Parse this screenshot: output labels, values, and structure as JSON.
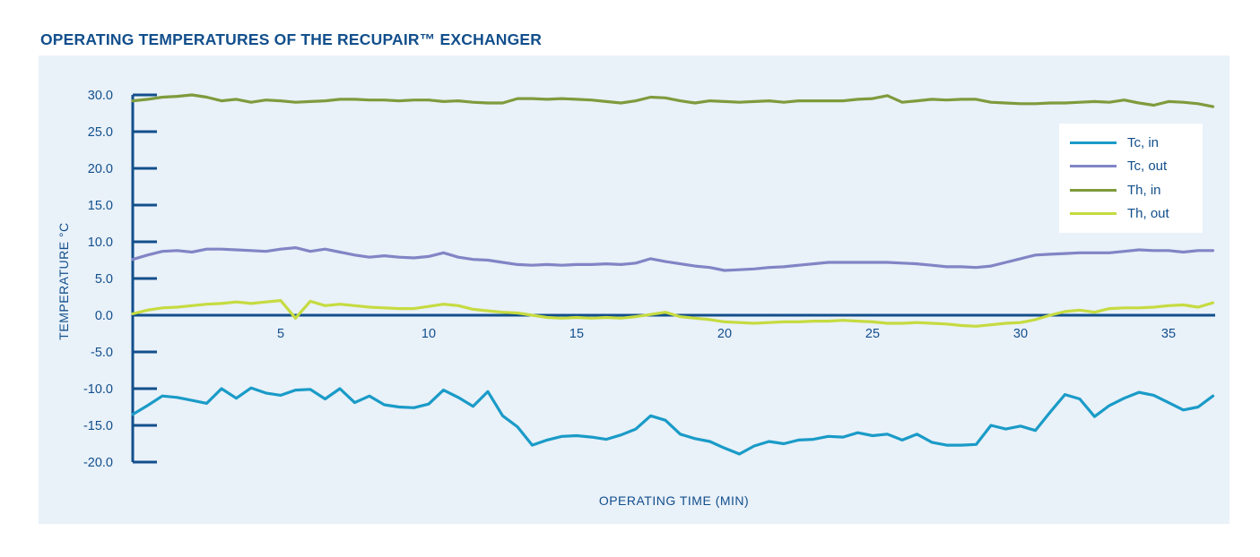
{
  "page": {
    "title": "OPERATING TEMPERATURES OF THE RECUPAIR™ EXCHANGER"
  },
  "colors": {
    "panel_bg": "#E9F1F9",
    "axis_blue": "#124F8C",
    "text_blue": "#124F8C",
    "legend_bg": "#FFFFFF"
  },
  "chart_data": {
    "type": "line",
    "title": "OPERATING TEMPERATURES OF THE RECUPAIR™ EXCHANGER",
    "xlabel": "OPERATING TIME (MIN)",
    "ylabel": "TEMPERATURE °C",
    "xlim": [
      0,
      36.5
    ],
    "ylim": [
      -20,
      30
    ],
    "grid": false,
    "legend_position": "upper right",
    "x_tick_values": [
      5,
      10,
      15,
      20,
      25,
      30,
      35
    ],
    "x_tick_labels": [
      "5",
      "10",
      "15",
      "20",
      "25",
      "30",
      "35"
    ],
    "y_tick_values": [
      30,
      25,
      20,
      15,
      10,
      5,
      0,
      -5,
      -10,
      -15,
      -20
    ],
    "y_tick_labels": [
      "30.0",
      "25.0",
      "20.0",
      "15.0",
      "10.0",
      "5.0",
      "0.0",
      "-5.0",
      "-10.0",
      "-15.0",
      "-20.0"
    ],
    "x_start": 0,
    "x_step": 0.5,
    "series": [
      {
        "key": "tc_in",
        "name": "Tc, in",
        "color": "#1A9BC7",
        "values": [
          -13.5,
          -12.3,
          -11.0,
          -11.2,
          -11.6,
          -12.0,
          -10.0,
          -11.3,
          -9.9,
          -10.6,
          -10.9,
          -10.2,
          -10.1,
          -11.4,
          -10.0,
          -11.9,
          -11.0,
          -12.2,
          -12.5,
          -12.6,
          -12.1,
          -10.2,
          -11.2,
          -12.4,
          -10.4,
          -13.7,
          -15.2,
          -17.7,
          -17.0,
          -16.5,
          -16.4,
          -16.6,
          -16.9,
          -16.3,
          -15.5,
          -13.7,
          -14.3,
          -16.2,
          -16.8,
          -17.2,
          -18.1,
          -18.9,
          -17.8,
          -17.2,
          -17.5,
          -17.0,
          -16.9,
          -16.5,
          -16.6,
          -16.0,
          -16.4,
          -16.2,
          -17.0,
          -16.2,
          -17.3,
          -17.7,
          -17.7,
          -17.6,
          -15.0,
          -15.5,
          -15.1,
          -15.7,
          -13.2,
          -10.8,
          -11.4,
          -13.8,
          -12.3,
          -11.3,
          -10.5,
          -10.9,
          -11.9,
          -12.9,
          -12.5,
          -11.0
        ]
      },
      {
        "key": "tc_out",
        "name": "Tc, out",
        "color": "#8185C5",
        "values": [
          7.6,
          8.2,
          8.7,
          8.8,
          8.6,
          9.0,
          9.0,
          8.9,
          8.8,
          8.7,
          9.0,
          9.2,
          8.7,
          9.0,
          8.6,
          8.2,
          7.9,
          8.1,
          7.9,
          7.8,
          8.0,
          8.5,
          7.9,
          7.6,
          7.5,
          7.2,
          6.9,
          6.8,
          6.9,
          6.8,
          6.9,
          6.9,
          7.0,
          6.9,
          7.1,
          7.7,
          7.3,
          7.0,
          6.7,
          6.5,
          6.1,
          6.2,
          6.3,
          6.5,
          6.6,
          6.8,
          7.0,
          7.2,
          7.2,
          7.2,
          7.2,
          7.2,
          7.1,
          7.0,
          6.8,
          6.6,
          6.6,
          6.5,
          6.7,
          7.2,
          7.7,
          8.2,
          8.3,
          8.4,
          8.5,
          8.5,
          8.5,
          8.7,
          8.9,
          8.8,
          8.8,
          8.6,
          8.8,
          8.8
        ]
      },
      {
        "key": "th_in",
        "name": "Th, in",
        "color": "#7E9B3C",
        "values": [
          29.2,
          29.4,
          29.7,
          29.8,
          30.0,
          29.7,
          29.2,
          29.4,
          29.0,
          29.3,
          29.2,
          29.0,
          29.1,
          29.2,
          29.4,
          29.4,
          29.3,
          29.3,
          29.2,
          29.3,
          29.3,
          29.1,
          29.2,
          29.0,
          28.9,
          28.9,
          29.5,
          29.5,
          29.4,
          29.5,
          29.4,
          29.3,
          29.1,
          28.9,
          29.2,
          29.7,
          29.6,
          29.2,
          28.9,
          29.2,
          29.1,
          29.0,
          29.1,
          29.2,
          29.0,
          29.2,
          29.2,
          29.2,
          29.2,
          29.4,
          29.5,
          29.9,
          29.0,
          29.2,
          29.4,
          29.3,
          29.4,
          29.4,
          29.0,
          28.9,
          28.8,
          28.8,
          28.9,
          28.9,
          29.0,
          29.1,
          29.0,
          29.3,
          28.9,
          28.6,
          29.1,
          29.0,
          28.8,
          28.4
        ]
      },
      {
        "key": "th_out",
        "name": "Th, out",
        "color": "#C6DB40",
        "values": [
          0.2,
          0.7,
          1.0,
          1.1,
          1.3,
          1.5,
          1.6,
          1.8,
          1.6,
          1.8,
          2.0,
          -0.4,
          1.9,
          1.3,
          1.5,
          1.3,
          1.1,
          1.0,
          0.9,
          0.9,
          1.2,
          1.5,
          1.3,
          0.8,
          0.6,
          0.4,
          0.3,
          0.0,
          -0.3,
          -0.4,
          -0.3,
          -0.4,
          -0.3,
          -0.4,
          -0.2,
          0.1,
          0.4,
          -0.2,
          -0.4,
          -0.6,
          -0.9,
          -1.0,
          -1.1,
          -1.0,
          -0.9,
          -0.9,
          -0.8,
          -0.8,
          -0.7,
          -0.8,
          -0.9,
          -1.1,
          -1.1,
          -1.0,
          -1.1,
          -1.2,
          -1.4,
          -1.5,
          -1.3,
          -1.1,
          -1.0,
          -0.6,
          0.0,
          0.5,
          0.7,
          0.4,
          0.9,
          1.0,
          1.0,
          1.1,
          1.3,
          1.4,
          1.1,
          1.7
        ]
      }
    ]
  }
}
